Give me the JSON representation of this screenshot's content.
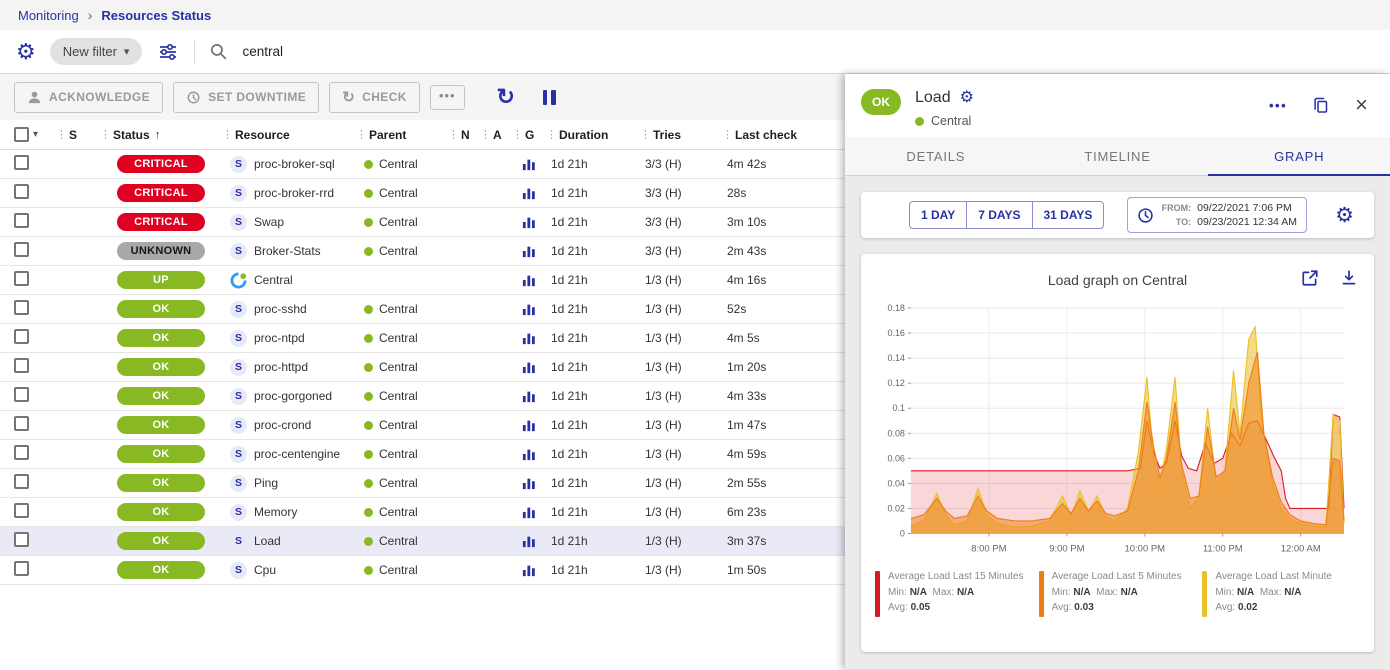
{
  "icons": {
    "breadcrumb_chevron": "›",
    "caret_down": "▾",
    "kebab": "⋮",
    "sort_asc": "↑",
    "more": "•••",
    "refresh": "↻",
    "close": "×",
    "gear": "⚙︎"
  },
  "colors": {
    "primary": "#2731a5",
    "critical": "#e00020",
    "unknown": "#a8a8a8",
    "ok": "#88b922"
  },
  "breadcrumb": {
    "items": [
      "Monitoring",
      "Resources Status"
    ]
  },
  "filter_bar": {
    "new_filter_label": "New filter",
    "search_value": "central"
  },
  "toolbar": {
    "acknowledge": "ACKNOWLEDGE",
    "set_downtime": "SET DOWNTIME",
    "check": "CHECK"
  },
  "table": {
    "sorted_column": "Status",
    "columns": [
      "S",
      "Status",
      "Resource",
      "Parent",
      "N",
      "A",
      "G",
      "Duration",
      "Tries",
      "Last check"
    ],
    "rows": [
      {
        "status": "CRITICAL",
        "severity": "critical",
        "icon": "service",
        "resource": "proc-broker-sql",
        "parent": "Central",
        "duration": "1d 21h",
        "tries": "3/3 (H)",
        "last_check": "4m 42s",
        "selected": false
      },
      {
        "status": "CRITICAL",
        "severity": "critical",
        "icon": "service",
        "resource": "proc-broker-rrd",
        "parent": "Central",
        "duration": "1d 21h",
        "tries": "3/3 (H)",
        "last_check": "28s",
        "selected": false
      },
      {
        "status": "CRITICAL",
        "severity": "critical",
        "icon": "service",
        "resource": "Swap",
        "parent": "Central",
        "duration": "1d 21h",
        "tries": "3/3 (H)",
        "last_check": "3m 10s",
        "selected": false
      },
      {
        "status": "UNKNOWN",
        "severity": "unknown",
        "icon": "service",
        "resource": "Broker-Stats",
        "parent": "Central",
        "duration": "1d 21h",
        "tries": "3/3 (H)",
        "last_check": "2m 43s",
        "selected": false
      },
      {
        "status": "UP",
        "severity": "up",
        "icon": "host",
        "resource": "Central",
        "parent": "",
        "duration": "1d 21h",
        "tries": "1/3 (H)",
        "last_check": "4m 16s",
        "selected": false
      },
      {
        "status": "OK",
        "severity": "ok",
        "icon": "service",
        "resource": "proc-sshd",
        "parent": "Central",
        "duration": "1d 21h",
        "tries": "1/3 (H)",
        "last_check": "52s",
        "selected": false
      },
      {
        "status": "OK",
        "severity": "ok",
        "icon": "service",
        "resource": "proc-ntpd",
        "parent": "Central",
        "duration": "1d 21h",
        "tries": "1/3 (H)",
        "last_check": "4m 5s",
        "selected": false
      },
      {
        "status": "OK",
        "severity": "ok",
        "icon": "service",
        "resource": "proc-httpd",
        "parent": "Central",
        "duration": "1d 21h",
        "tries": "1/3 (H)",
        "last_check": "1m 20s",
        "selected": false
      },
      {
        "status": "OK",
        "severity": "ok",
        "icon": "service",
        "resource": "proc-gorgoned",
        "parent": "Central",
        "duration": "1d 21h",
        "tries": "1/3 (H)",
        "last_check": "4m 33s",
        "selected": false
      },
      {
        "status": "OK",
        "severity": "ok",
        "icon": "service",
        "resource": "proc-crond",
        "parent": "Central",
        "duration": "1d 21h",
        "tries": "1/3 (H)",
        "last_check": "1m 47s",
        "selected": false
      },
      {
        "status": "OK",
        "severity": "ok",
        "icon": "service",
        "resource": "proc-centengine",
        "parent": "Central",
        "duration": "1d 21h",
        "tries": "1/3 (H)",
        "last_check": "4m 59s",
        "selected": false
      },
      {
        "status": "OK",
        "severity": "ok",
        "icon": "service",
        "resource": "Ping",
        "parent": "Central",
        "duration": "1d 21h",
        "tries": "1/3 (H)",
        "last_check": "2m 55s",
        "selected": false
      },
      {
        "status": "OK",
        "severity": "ok",
        "icon": "service",
        "resource": "Memory",
        "parent": "Central",
        "duration": "1d 21h",
        "tries": "1/3 (H)",
        "last_check": "6m 23s",
        "selected": false
      },
      {
        "status": "OK",
        "severity": "ok",
        "icon": "service",
        "resource": "Load",
        "parent": "Central",
        "duration": "1d 21h",
        "tries": "1/3 (H)",
        "last_check": "3m 37s",
        "selected": true
      },
      {
        "status": "OK",
        "severity": "ok",
        "icon": "service",
        "resource": "Cpu",
        "parent": "Central",
        "duration": "1d 21h",
        "tries": "1/3 (H)",
        "last_check": "1m 50s",
        "selected": false
      }
    ]
  },
  "panel": {
    "status": "OK",
    "title": "Load",
    "subtitle": "Central",
    "tabs": [
      "DETAILS",
      "TIMELINE",
      "GRAPH"
    ],
    "active_tab": "GRAPH",
    "range_buttons": [
      "1 DAY",
      "7 DAYS",
      "31 DAYS"
    ],
    "from_label": "FROM:",
    "from_value": "09/22/2021 7:06 PM",
    "to_label": "TO:",
    "to_value": "09/23/2021 12:34 AM",
    "graph_title": "Load graph on Central"
  },
  "chart_data": {
    "type": "area",
    "title": "Load graph on Central",
    "xlabel": "",
    "ylabel": "",
    "ylim": [
      0,
      0.18
    ],
    "yticks": [
      0,
      0.02,
      0.04,
      0.06,
      0.08,
      0.1,
      0.12,
      0.14,
      0.16,
      0.18
    ],
    "grid": true,
    "legend_position": "bottom",
    "xticks": [
      {
        "pos": 0.18,
        "label": "8:00 PM"
      },
      {
        "pos": 0.36,
        "label": "9:00 PM"
      },
      {
        "pos": 0.54,
        "label": "10:00 PM"
      },
      {
        "pos": 0.72,
        "label": "11:00 PM"
      },
      {
        "pos": 0.9,
        "label": "12:00 AM"
      }
    ],
    "draw_order": [
      0,
      2,
      1
    ],
    "series": [
      {
        "name": "Average Load Last 15 Minutes",
        "color": "#d81a22",
        "fill": "rgba(224,26,34,0.18)",
        "min": "N/A",
        "max": "N/A",
        "avg": "0.05",
        "points": [
          [
            0,
            0.05
          ],
          [
            0.1,
            0.05
          ],
          [
            0.2,
            0.05
          ],
          [
            0.3,
            0.05
          ],
          [
            0.4,
            0.05
          ],
          [
            0.5,
            0.05
          ],
          [
            0.53,
            0.052
          ],
          [
            0.545,
            0.09
          ],
          [
            0.56,
            0.065
          ],
          [
            0.575,
            0.052
          ],
          [
            0.59,
            0.056
          ],
          [
            0.61,
            0.09
          ],
          [
            0.625,
            0.062
          ],
          [
            0.64,
            0.052
          ],
          [
            0.66,
            0.05
          ],
          [
            0.68,
            0.072
          ],
          [
            0.7,
            0.056
          ],
          [
            0.72,
            0.06
          ],
          [
            0.74,
            0.08
          ],
          [
            0.76,
            0.07
          ],
          [
            0.78,
            0.088
          ],
          [
            0.8,
            0.09
          ],
          [
            0.82,
            0.075
          ],
          [
            0.84,
            0.06
          ],
          [
            0.855,
            0.05
          ],
          [
            0.865,
            0.028
          ],
          [
            0.875,
            0.02
          ],
          [
            0.9,
            0.02
          ],
          [
            0.93,
            0.02
          ],
          [
            0.955,
            0.02
          ],
          [
            0.965,
            0.02
          ],
          [
            0.975,
            0.095
          ],
          [
            0.99,
            0.093
          ],
          [
            1,
            0.02
          ]
        ]
      },
      {
        "name": "Average Load Last 5 Minutes",
        "color": "#ef7d16",
        "fill": "rgba(239,125,22,0.5)",
        "min": "N/A",
        "max": "N/A",
        "avg": "0.03",
        "points": [
          [
            0,
            0.012
          ],
          [
            0.03,
            0.015
          ],
          [
            0.06,
            0.028
          ],
          [
            0.08,
            0.018
          ],
          [
            0.1,
            0.012
          ],
          [
            0.13,
            0.014
          ],
          [
            0.155,
            0.03
          ],
          [
            0.175,
            0.018
          ],
          [
            0.2,
            0.012
          ],
          [
            0.24,
            0.01
          ],
          [
            0.28,
            0.01
          ],
          [
            0.32,
            0.012
          ],
          [
            0.35,
            0.024
          ],
          [
            0.37,
            0.016
          ],
          [
            0.39,
            0.028
          ],
          [
            0.41,
            0.018
          ],
          [
            0.43,
            0.026
          ],
          [
            0.45,
            0.016
          ],
          [
            0.47,
            0.014
          ],
          [
            0.5,
            0.018
          ],
          [
            0.525,
            0.05
          ],
          [
            0.545,
            0.105
          ],
          [
            0.56,
            0.07
          ],
          [
            0.575,
            0.045
          ],
          [
            0.59,
            0.06
          ],
          [
            0.61,
            0.105
          ],
          [
            0.625,
            0.055
          ],
          [
            0.645,
            0.028
          ],
          [
            0.665,
            0.03
          ],
          [
            0.685,
            0.085
          ],
          [
            0.705,
            0.045
          ],
          [
            0.725,
            0.05
          ],
          [
            0.745,
            0.1
          ],
          [
            0.76,
            0.075
          ],
          [
            0.78,
            0.12
          ],
          [
            0.8,
            0.145
          ],
          [
            0.815,
            0.08
          ],
          [
            0.835,
            0.045
          ],
          [
            0.855,
            0.025
          ],
          [
            0.875,
            0.015
          ],
          [
            0.9,
            0.01
          ],
          [
            0.93,
            0.008
          ],
          [
            0.958,
            0.007
          ],
          [
            0.975,
            0.06
          ],
          [
            0.99,
            0.058
          ],
          [
            1,
            0.01
          ]
        ]
      },
      {
        "name": "Average Load Last Minute",
        "color": "#eac028",
        "fill": "rgba(234,192,40,0.55)",
        "min": "N/A",
        "max": "N/A",
        "avg": "0.02",
        "points": [
          [
            0,
            0.006
          ],
          [
            0.03,
            0.01
          ],
          [
            0.06,
            0.032
          ],
          [
            0.08,
            0.015
          ],
          [
            0.1,
            0.007
          ],
          [
            0.13,
            0.01
          ],
          [
            0.155,
            0.036
          ],
          [
            0.175,
            0.015
          ],
          [
            0.2,
            0.008
          ],
          [
            0.24,
            0.005
          ],
          [
            0.28,
            0.006
          ],
          [
            0.32,
            0.01
          ],
          [
            0.35,
            0.03
          ],
          [
            0.37,
            0.014
          ],
          [
            0.39,
            0.034
          ],
          [
            0.41,
            0.018
          ],
          [
            0.43,
            0.03
          ],
          [
            0.45,
            0.014
          ],
          [
            0.47,
            0.01
          ],
          [
            0.5,
            0.02
          ],
          [
            0.525,
            0.065
          ],
          [
            0.545,
            0.125
          ],
          [
            0.56,
            0.06
          ],
          [
            0.575,
            0.04
          ],
          [
            0.59,
            0.068
          ],
          [
            0.61,
            0.125
          ],
          [
            0.625,
            0.05
          ],
          [
            0.645,
            0.02
          ],
          [
            0.665,
            0.03
          ],
          [
            0.685,
            0.1
          ],
          [
            0.705,
            0.04
          ],
          [
            0.725,
            0.05
          ],
          [
            0.745,
            0.13
          ],
          [
            0.76,
            0.08
          ],
          [
            0.78,
            0.155
          ],
          [
            0.795,
            0.165
          ],
          [
            0.81,
            0.09
          ],
          [
            0.835,
            0.04
          ],
          [
            0.855,
            0.02
          ],
          [
            0.875,
            0.012
          ],
          [
            0.9,
            0.008
          ],
          [
            0.93,
            0.006
          ],
          [
            0.958,
            0.005
          ],
          [
            0.975,
            0.095
          ],
          [
            0.99,
            0.09
          ],
          [
            1,
            0.008
          ]
        ]
      }
    ],
    "legend_labels": {
      "min": "Min:",
      "max": "Max:",
      "avg": "Avg:"
    }
  }
}
